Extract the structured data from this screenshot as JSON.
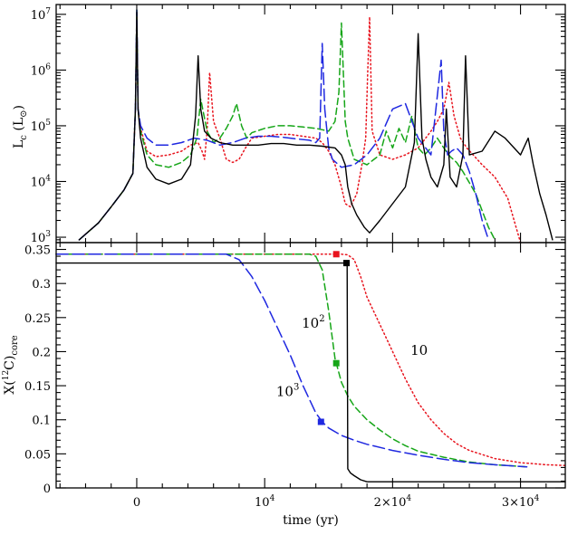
{
  "chart_data": [
    {
      "type": "line",
      "panel": "top",
      "ylabel_main": "L",
      "ylabel_sub": "c",
      "ylabel_unit_open": " (L",
      "ylabel_unit_sub": "⊙",
      "ylabel_unit_close": ")",
      "yscale": "log",
      "xlim": [
        -6300,
        33500
      ],
      "ylim": [
        800,
        15000000
      ],
      "yticks": [
        {
          "value": 1000,
          "base": "10",
          "exp": "3"
        },
        {
          "value": 10000,
          "base": "10",
          "exp": "4"
        },
        {
          "value": 100000,
          "base": "10",
          "exp": "5"
        },
        {
          "value": 1000000,
          "base": "10",
          "exp": "6"
        },
        {
          "value": 10000000,
          "base": "10",
          "exp": "7"
        }
      ],
      "series": [
        {
          "label": "10",
          "color": "#e8141e",
          "dash": "1.5 3",
          "x": [
            -4500,
            -3000,
            -2000,
            -1000,
            -300,
            -100,
            0,
            100,
            300,
            800,
            1500,
            2500,
            3500,
            4200,
            4800,
            5100,
            5300,
            5500,
            5700,
            6000,
            6500,
            7000,
            7500,
            8000,
            8500,
            9000,
            10000,
            11000,
            12000,
            13000,
            14000,
            14500,
            15000,
            15500,
            16000,
            16300,
            16700,
            17200,
            17600,
            17900,
            18050,
            18200,
            18400,
            19000,
            20000,
            21000,
            22000,
            23000,
            23500,
            24000,
            24400,
            24800,
            25300,
            25800,
            27000,
            28000,
            29000,
            29500,
            30000
          ],
          "y": [
            900,
            1800,
            3500,
            7000,
            14000,
            200000,
            11000000,
            200000,
            90000,
            35000,
            28000,
            30000,
            35000,
            45000,
            50000,
            35000,
            25000,
            80000,
            900000,
            120000,
            60000,
            25000,
            22000,
            25000,
            40000,
            60000,
            65000,
            70000,
            70000,
            65000,
            60000,
            50000,
            35000,
            20000,
            8000,
            4000,
            3500,
            6000,
            20000,
            60000,
            800000,
            9000000,
            80000,
            30000,
            25000,
            30000,
            40000,
            80000,
            120000,
            200000,
            600000,
            150000,
            60000,
            40000,
            20000,
            12000,
            5000,
            2000,
            800
          ]
        },
        {
          "label": "10²",
          "color": "#16a618",
          "dash": "7 4",
          "x": [
            -4500,
            -3000,
            -2000,
            -1000,
            -300,
            -100,
            0,
            100,
            300,
            800,
            1500,
            2500,
            3500,
            4200,
            4700,
            5000,
            5500,
            6000,
            6500,
            7000,
            7500,
            7800,
            8200,
            8600,
            9000,
            10000,
            11000,
            12000,
            13000,
            14000,
            14500,
            15000,
            15500,
            15800,
            16000,
            16300,
            16500,
            17000,
            18000,
            19000,
            19500,
            20000,
            20500,
            21000,
            21500,
            22000,
            22500,
            23000,
            23500,
            24000,
            24500,
            25000,
            25500,
            26500,
            27000,
            27500,
            28000
          ],
          "y": [
            900,
            1800,
            3500,
            7000,
            14000,
            200000,
            12000000,
            200000,
            80000,
            30000,
            20000,
            18000,
            22000,
            30000,
            60000,
            300000,
            80000,
            50000,
            60000,
            90000,
            150000,
            250000,
            100000,
            60000,
            75000,
            90000,
            100000,
            100000,
            95000,
            90000,
            85000,
            80000,
            120000,
            400000,
            7000000,
            120000,
            60000,
            25000,
            20000,
            30000,
            80000,
            40000,
            90000,
            50000,
            150000,
            40000,
            30000,
            40000,
            60000,
            40000,
            28000,
            22000,
            15000,
            6000,
            3000,
            1500,
            900
          ]
        },
        {
          "label": "10³",
          "color": "#1f28e0",
          "dash": "13 5",
          "x": [
            -4500,
            -3000,
            -2000,
            -1000,
            -300,
            -100,
            0,
            100,
            300,
            800,
            1500,
            2500,
            3500,
            4500,
            5500,
            6500,
            7500,
            8500,
            9500,
            10500,
            11500,
            12500,
            13500,
            14000,
            14300,
            14500,
            14700,
            15000,
            15300,
            16000,
            17000,
            18000,
            19000,
            20000,
            21000,
            22000,
            23000,
            23800,
            24000,
            24300,
            24600,
            25000,
            25500,
            26000,
            26500,
            27000,
            27500
          ],
          "y": [
            900,
            1800,
            3500,
            7000,
            14000,
            200000,
            12000000,
            200000,
            100000,
            60000,
            45000,
            45000,
            50000,
            60000,
            55000,
            45000,
            50000,
            60000,
            65000,
            65000,
            62000,
            58000,
            55000,
            50000,
            60000,
            3000000,
            200000,
            40000,
            25000,
            18000,
            20000,
            30000,
            60000,
            200000,
            250000,
            60000,
            30000,
            1500000,
            80000,
            30000,
            35000,
            40000,
            30000,
            15000,
            6000,
            2000,
            900
          ]
        },
        {
          "label": "",
          "color": "#000000",
          "dash": "",
          "x": [
            -4500,
            -3000,
            -2000,
            -1000,
            -300,
            -100,
            0,
            100,
            300,
            800,
            1500,
            2500,
            3500,
            4200,
            4600,
            4800,
            5000,
            5300,
            5800,
            6500,
            7500,
            8500,
            9500,
            10500,
            11500,
            12500,
            13500,
            14500,
            15500,
            16000,
            16300,
            16500,
            16800,
            17200,
            17800,
            18200,
            19000,
            20000,
            21000,
            21700,
            22000,
            22300,
            22600,
            23000,
            23500,
            24000,
            24200,
            24500,
            25000,
            25500,
            25700,
            26000,
            27000,
            28000,
            28800,
            29500,
            30000,
            30600,
            31000,
            31500,
            32000,
            32500
          ],
          "y": [
            900,
            1800,
            3500,
            7000,
            14000,
            200000,
            11000000,
            200000,
            60000,
            18000,
            11000,
            9000,
            11000,
            20000,
            150000,
            1800000,
            200000,
            80000,
            60000,
            50000,
            45000,
            45000,
            45000,
            48000,
            48000,
            45000,
            45000,
            43000,
            40000,
            30000,
            20000,
            8000,
            4000,
            2500,
            1500,
            1200,
            2000,
            4000,
            8000,
            50000,
            4500000,
            60000,
            25000,
            12000,
            8000,
            20000,
            200000,
            12000,
            8000,
            30000,
            1800000,
            30000,
            35000,
            80000,
            60000,
            40000,
            30000,
            60000,
            20000,
            6000,
            2500,
            900
          ]
        }
      ]
    },
    {
      "type": "line",
      "panel": "bottom",
      "xlabel": "time (yr)",
      "ylabel_pre": "X(",
      "ylabel_sup": "12",
      "ylabel_mid": "C)",
      "ylabel_sub": "core",
      "xlim": [
        -6300,
        33500
      ],
      "ylim": [
        0,
        0.36
      ],
      "yticks": [
        "0",
        "0.05",
        "0.1",
        "0.15",
        "0.2",
        "0.25",
        "0.3",
        "0.35"
      ],
      "ytick_values": [
        0,
        0.05,
        0.1,
        0.15,
        0.2,
        0.25,
        0.3,
        0.35
      ],
      "xticks": [
        {
          "value": 0,
          "base": "0",
          "exp": ""
        },
        {
          "value": 10000,
          "base": "10",
          "exp": "4"
        },
        {
          "value": 20000,
          "base": "2×10",
          "exp": "4"
        },
        {
          "value": 30000,
          "base": "3×10",
          "exp": "4"
        }
      ],
      "annotations": [
        {
          "base": "10",
          "exp": "",
          "x": 21400,
          "y": 0.195
        },
        {
          "base": "10",
          "exp": "2",
          "x": 12900,
          "y": 0.235
        },
        {
          "base": "10",
          "exp": "3",
          "x": 10900,
          "y": 0.135
        }
      ],
      "series": [
        {
          "label": "10",
          "color": "#e8141e",
          "dash": "1.5 3",
          "x": [
            -6300,
            15000,
            16000,
            16500,
            17000,
            17500,
            18000,
            19000,
            20000,
            21000,
            22000,
            23000,
            24000,
            25000,
            26000,
            28000,
            30000,
            32000,
            33500
          ],
          "y": [
            0.343,
            0.343,
            0.343,
            0.342,
            0.335,
            0.31,
            0.28,
            0.24,
            0.2,
            0.16,
            0.125,
            0.1,
            0.08,
            0.065,
            0.055,
            0.043,
            0.037,
            0.034,
            0.033
          ]
        },
        {
          "label": "10²",
          "color": "#16a618",
          "dash": "7 4",
          "x": [
            -6300,
            13500,
            14000,
            14500,
            15000,
            15500,
            16000,
            16500,
            17000,
            18000,
            19000,
            20000,
            21000,
            22000,
            24000,
            26000,
            28000,
            30500
          ],
          "y": [
            0.343,
            0.343,
            0.34,
            0.32,
            0.26,
            0.19,
            0.155,
            0.135,
            0.12,
            0.1,
            0.085,
            0.072,
            0.062,
            0.054,
            0.045,
            0.038,
            0.034,
            0.031
          ]
        },
        {
          "label": "10³",
          "color": "#1f28e0",
          "dash": "13 5",
          "x": [
            -6300,
            7000,
            8000,
            9000,
            10000,
            11000,
            12000,
            13000,
            14000,
            14500,
            15000,
            16000,
            17000,
            18000,
            20000,
            22000,
            24000,
            26000,
            28000,
            30500
          ],
          "y": [
            0.343,
            0.343,
            0.335,
            0.31,
            0.275,
            0.235,
            0.195,
            0.15,
            0.11,
            0.097,
            0.088,
            0.077,
            0.07,
            0.064,
            0.055,
            0.048,
            0.042,
            0.037,
            0.034,
            0.031
          ]
        },
        {
          "label": "",
          "color": "#000000",
          "dash": "",
          "x": [
            -6300,
            16400,
            16450,
            16500,
            16700,
            17000,
            17500,
            18000,
            19000,
            21000,
            25000,
            30000,
            33500
          ],
          "y": [
            0.33,
            0.33,
            0.33,
            0.028,
            0.022,
            0.018,
            0.012,
            0.009,
            0.009,
            0.009,
            0.009,
            0.009,
            0.009
          ]
        }
      ],
      "markers": [
        {
          "color": "#e8141e",
          "x": 15600,
          "y": 0.343
        },
        {
          "color": "#000000",
          "x": 16400,
          "y": 0.33
        },
        {
          "color": "#16a618",
          "x": 15600,
          "y": 0.183
        },
        {
          "color": "#1f28e0",
          "x": 14400,
          "y": 0.097
        }
      ]
    }
  ]
}
